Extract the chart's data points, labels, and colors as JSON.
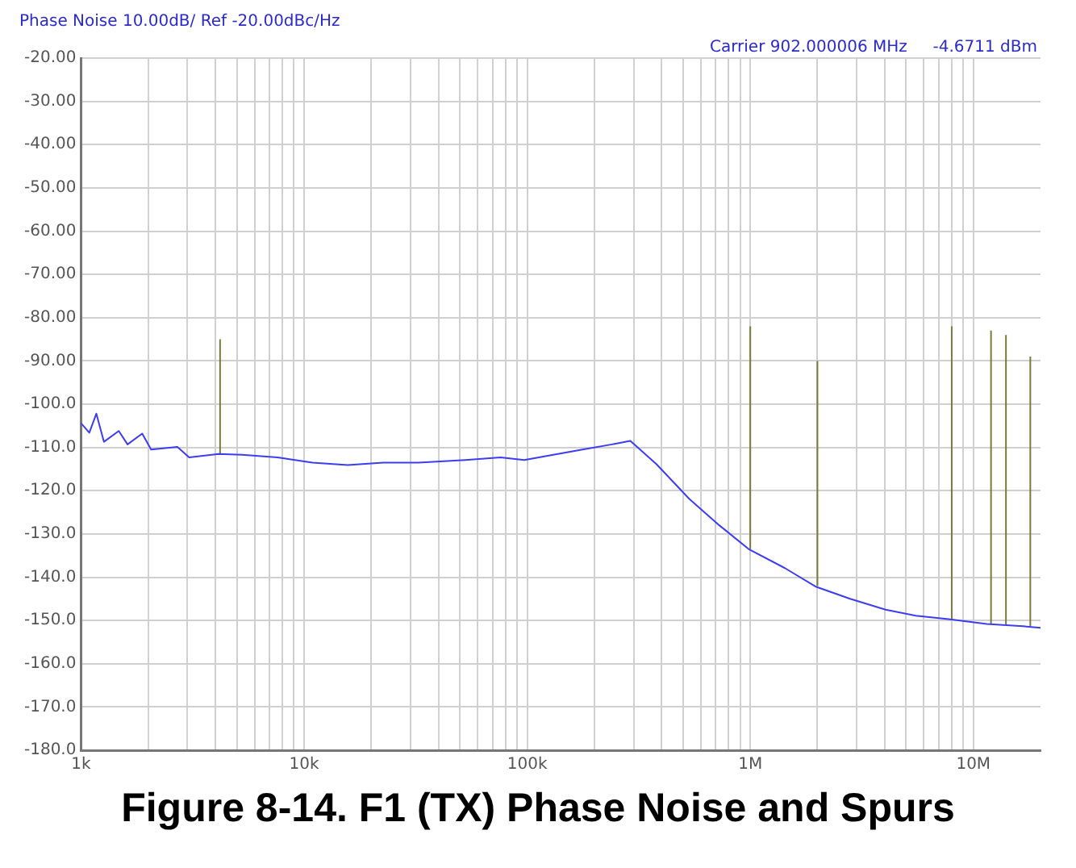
{
  "chart_data": {
    "type": "line",
    "title": "Figure 8-14. F1 (TX) Phase Noise and Spurs",
    "annotations": [
      "Phase Noise 10.00dB/ Ref -20.00dBc/Hz",
      "Carrier 902.000006 MHz     -4.6711 dBm"
    ],
    "log": "x",
    "grid": true,
    "legend": false,
    "marker": "none",
    "line_style": "solid",
    "xlim": [
      1000,
      20000000
    ],
    "xticks": [
      {
        "value": 1000,
        "label": "1k"
      },
      {
        "value": 2000,
        "label": null
      },
      {
        "value": 3000,
        "label": null
      },
      {
        "value": 4000,
        "label": null
      },
      {
        "value": 5000,
        "label": null
      },
      {
        "value": 6000,
        "label": null
      },
      {
        "value": 7000,
        "label": null
      },
      {
        "value": 8000,
        "label": null
      },
      {
        "value": 9000,
        "label": null
      },
      {
        "value": 10000,
        "label": "10k"
      },
      {
        "value": 20000,
        "label": null
      },
      {
        "value": 30000,
        "label": null
      },
      {
        "value": 40000,
        "label": null
      },
      {
        "value": 50000,
        "label": null
      },
      {
        "value": 60000,
        "label": null
      },
      {
        "value": 70000,
        "label": null
      },
      {
        "value": 80000,
        "label": null
      },
      {
        "value": 90000,
        "label": null
      },
      {
        "value": 100000,
        "label": "100k"
      },
      {
        "value": 200000,
        "label": null
      },
      {
        "value": 300000,
        "label": null
      },
      {
        "value": 400000,
        "label": null
      },
      {
        "value": 500000,
        "label": null
      },
      {
        "value": 600000,
        "label": null
      },
      {
        "value": 700000,
        "label": null
      },
      {
        "value": 800000,
        "label": null
      },
      {
        "value": 900000,
        "label": null
      },
      {
        "value": 1000000,
        "label": "1M"
      },
      {
        "value": 2000000,
        "label": null
      },
      {
        "value": 3000000,
        "label": null
      },
      {
        "value": 4000000,
        "label": null
      },
      {
        "value": 5000000,
        "label": null
      },
      {
        "value": 6000000,
        "label": null
      },
      {
        "value": 7000000,
        "label": null
      },
      {
        "value": 8000000,
        "label": null
      },
      {
        "value": 9000000,
        "label": null
      },
      {
        "value": 10000000,
        "label": "10M"
      }
    ],
    "ylim": [
      -180,
      -20
    ],
    "yticks": [
      {
        "value": -20,
        "label": "-20.00"
      },
      {
        "value": -30,
        "label": "-30.00"
      },
      {
        "value": -40,
        "label": "-40.00"
      },
      {
        "value": -50,
        "label": "-50.00"
      },
      {
        "value": -60,
        "label": "-60.00"
      },
      {
        "value": -70,
        "label": "-70.00"
      },
      {
        "value": -80,
        "label": "-80.00"
      },
      {
        "value": -90,
        "label": "-90.00"
      },
      {
        "value": -100,
        "label": "-100.0"
      },
      {
        "value": -110,
        "label": "-110.0"
      },
      {
        "value": -120,
        "label": "-120.0"
      },
      {
        "value": -130,
        "label": "-130.0"
      },
      {
        "value": -140,
        "label": "-140.0"
      },
      {
        "value": -150,
        "label": "-150.0"
      },
      {
        "value": -160,
        "label": "-160.0"
      },
      {
        "value": -170,
        "label": "-170.0"
      },
      {
        "value": -180,
        "label": "-180.0"
      }
    ],
    "series": [
      {
        "color": "#3c3cf5",
        "x": [
          1000,
          1089,
          1171,
          1267,
          1476,
          1616,
          1880,
          2061,
          2703,
          3052,
          4132,
          5272,
          7595,
          10900,
          15700,
          22600,
          32500,
          52800,
          76000,
          97000,
          131000,
          177000,
          240000,
          290000,
          380000,
          533000,
          726000,
          990000,
          1430000,
          1970000,
          2800000,
          4040000,
          5520000,
          7740000,
          11500000,
          17300000,
          20000000
        ],
        "values": [
          -104.4,
          -106.6,
          -102.2,
          -108.7,
          -106.2,
          -109.3,
          -106.8,
          -110.5,
          -109.9,
          -112.3,
          -111.5,
          -111.7,
          -112.3,
          -113.5,
          -114.1,
          -113.5,
          -113.5,
          -112.9,
          -112.3,
          -112.9,
          -111.7,
          -110.5,
          -109.3,
          -108.5,
          -113.9,
          -121.9,
          -128,
          -133.6,
          -137.9,
          -142.2,
          -145,
          -147.5,
          -148.9,
          -149.7,
          -150.8,
          -151.4,
          -151.7
        ]
      },
      {
        "color": "#7a7a3a",
        "x": [
          4200,
          4200
        ],
        "values": [
          -111.5,
          -85
        ]
      },
      {
        "color": "#7a7a3a",
        "x": [
          1000000,
          1000000
        ],
        "values": [
          -133.5,
          -82
        ]
      },
      {
        "color": "#7a7a3a",
        "x": [
          2000000,
          2000000
        ],
        "values": [
          -142,
          -90
        ]
      },
      {
        "color": "#7a7a3a",
        "x": [
          8000000,
          8000000
        ],
        "values": [
          -149.7,
          -82
        ]
      },
      {
        "color": "#7a7a3a",
        "x": [
          12000000,
          12000000
        ],
        "values": [
          -150.8,
          -83
        ]
      },
      {
        "color": "#7a7a3a",
        "x": [
          14000000,
          14000000
        ],
        "values": [
          -151,
          -84
        ]
      },
      {
        "color": "#7a7a3a",
        "x": [
          18000000,
          18000000
        ],
        "values": [
          -151.4,
          -89
        ]
      }
    ]
  }
}
